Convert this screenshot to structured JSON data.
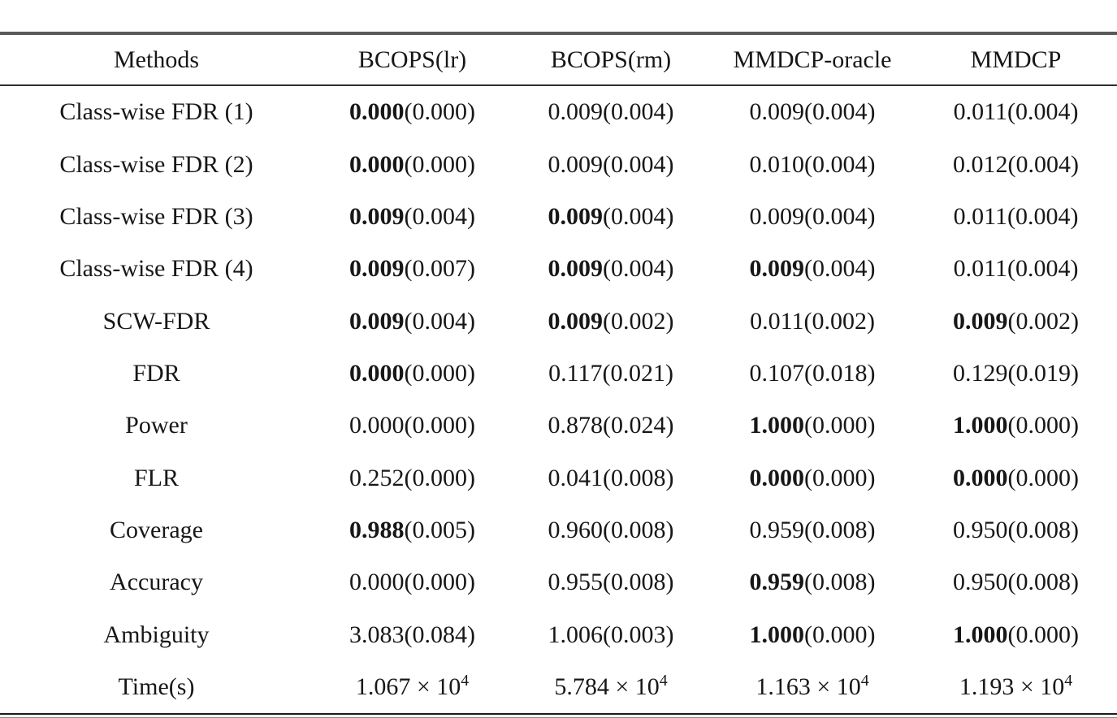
{
  "table": {
    "columns": [
      "Methods",
      "BCOPS(lr)",
      "BCOPS(rm)",
      "MMDCP-oracle",
      "MMDCP"
    ],
    "rows": [
      {
        "label": "Class-wise FDR (1)",
        "cells": [
          {
            "v": "0.000",
            "sd": "0.000",
            "bold": true
          },
          {
            "v": "0.009",
            "sd": "0.004",
            "bold": false
          },
          {
            "v": "0.009",
            "sd": "0.004",
            "bold": false
          },
          {
            "v": "0.011",
            "sd": "0.004",
            "bold": false
          }
        ]
      },
      {
        "label": "Class-wise FDR (2)",
        "cells": [
          {
            "v": "0.000",
            "sd": "0.000",
            "bold": true
          },
          {
            "v": "0.009",
            "sd": "0.004",
            "bold": false
          },
          {
            "v": "0.010",
            "sd": "0.004",
            "bold": false
          },
          {
            "v": "0.012",
            "sd": "0.004",
            "bold": false
          }
        ]
      },
      {
        "label": "Class-wise FDR (3)",
        "cells": [
          {
            "v": "0.009",
            "sd": "0.004",
            "bold": true
          },
          {
            "v": "0.009",
            "sd": "0.004",
            "bold": true
          },
          {
            "v": "0.009",
            "sd": "0.004",
            "bold": false
          },
          {
            "v": "0.011",
            "sd": "0.004",
            "bold": false
          }
        ]
      },
      {
        "label": "Class-wise FDR (4)",
        "cells": [
          {
            "v": "0.009",
            "sd": "0.007",
            "bold": true
          },
          {
            "v": "0.009",
            "sd": "0.004",
            "bold": true
          },
          {
            "v": "0.009",
            "sd": "0.004",
            "bold": true
          },
          {
            "v": "0.011",
            "sd": "0.004",
            "bold": false
          }
        ]
      },
      {
        "label": "SCW-FDR",
        "cells": [
          {
            "v": "0.009",
            "sd": "0.004",
            "bold": true
          },
          {
            "v": "0.009",
            "sd": "0.002",
            "bold": true
          },
          {
            "v": "0.011",
            "sd": "0.002",
            "bold": false
          },
          {
            "v": "0.009",
            "sd": "0.002",
            "bold": true
          }
        ]
      },
      {
        "label": "FDR",
        "cells": [
          {
            "v": "0.000",
            "sd": "0.000",
            "bold": true
          },
          {
            "v": "0.117",
            "sd": "0.021",
            "bold": false
          },
          {
            "v": "0.107",
            "sd": "0.018",
            "bold": false
          },
          {
            "v": "0.129",
            "sd": "0.019",
            "bold": false
          }
        ]
      },
      {
        "label": "Power",
        "cells": [
          {
            "v": "0.000",
            "sd": "0.000",
            "bold": false
          },
          {
            "v": "0.878",
            "sd": "0.024",
            "bold": false
          },
          {
            "v": "1.000",
            "sd": "0.000",
            "bold": true
          },
          {
            "v": "1.000",
            "sd": "0.000",
            "bold": true
          }
        ]
      },
      {
        "label": "FLR",
        "cells": [
          {
            "v": "0.252",
            "sd": "0.000",
            "bold": false
          },
          {
            "v": "0.041",
            "sd": "0.008",
            "bold": false
          },
          {
            "v": "0.000",
            "sd": "0.000",
            "bold": true
          },
          {
            "v": "0.000",
            "sd": "0.000",
            "bold": true
          }
        ]
      },
      {
        "label": "Coverage",
        "cells": [
          {
            "v": "0.988",
            "sd": "0.005",
            "bold": true
          },
          {
            "v": "0.960",
            "sd": "0.008",
            "bold": false
          },
          {
            "v": "0.959",
            "sd": "0.008",
            "bold": false
          },
          {
            "v": "0.950",
            "sd": "0.008",
            "bold": false
          }
        ]
      },
      {
        "label": "Accuracy",
        "cells": [
          {
            "v": "0.000",
            "sd": "0.000",
            "bold": false
          },
          {
            "v": "0.955",
            "sd": "0.008",
            "bold": false
          },
          {
            "v": "0.959",
            "sd": "0.008",
            "bold": true
          },
          {
            "v": "0.950",
            "sd": "0.008",
            "bold": false
          }
        ]
      },
      {
        "label": "Ambiguity",
        "cells": [
          {
            "v": "3.083",
            "sd": "0.084",
            "bold": false
          },
          {
            "v": "1.006",
            "sd": "0.003",
            "bold": false
          },
          {
            "v": "1.000",
            "sd": "0.000",
            "bold": true
          },
          {
            "v": "1.000",
            "sd": "0.000",
            "bold": true
          }
        ]
      },
      {
        "label": "Time(s)",
        "cells": [
          {
            "v": "1.067 × 10",
            "exp": "4",
            "sci": true
          },
          {
            "v": "5.784 × 10",
            "exp": "4",
            "sci": true
          },
          {
            "v": "1.163 × 10",
            "exp": "4",
            "sci": true
          },
          {
            "v": "1.193 × 10",
            "exp": "4",
            "sci": true
          }
        ]
      }
    ]
  },
  "colors": {
    "background": "#ffffff",
    "text": "#171717",
    "top_rule": "#595959",
    "header_rule": "#2e2e2e",
    "bottom_rule_black": "#1b1b1b",
    "bottom_rule_gray": "#8a8a8a"
  }
}
